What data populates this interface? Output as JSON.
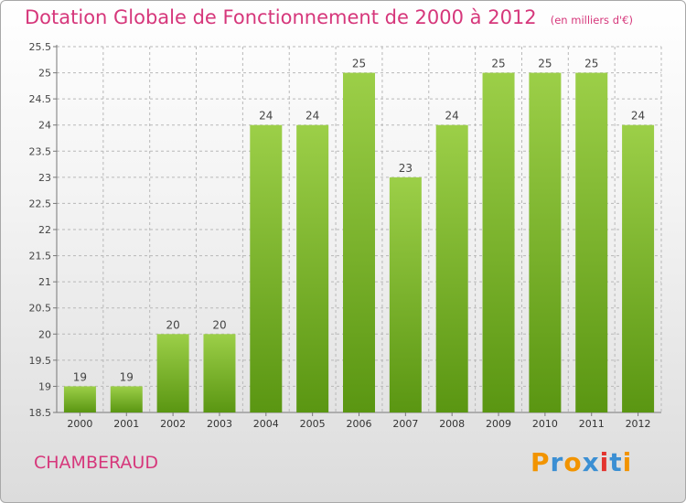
{
  "header": {
    "title": "Dotation Globale de Fonctionnement de 2000 à 2012",
    "unit": "(en milliers d'€)"
  },
  "footer": {
    "commune": "CHAMBERAUD",
    "logo": "Proxiti"
  },
  "colors": {
    "title": "#d6377b",
    "bar_top": "#9ccf48",
    "bar_bottom": "#5a9612",
    "grid": "#b8b8b8",
    "logo_letters": [
      "#f29400",
      "#3b8fd3",
      "#f29400",
      "#3b8fd3",
      "#e3342f",
      "#3b8fd3",
      "#f29400"
    ]
  },
  "chart_data": {
    "type": "bar",
    "categories": [
      "2000",
      "2001",
      "2002",
      "2003",
      "2004",
      "2005",
      "2006",
      "2007",
      "2008",
      "2009",
      "2010",
      "2011",
      "2012"
    ],
    "values": [
      19,
      19,
      20,
      20,
      24,
      24,
      25,
      23,
      24,
      25,
      25,
      25,
      24
    ],
    "title": "Dotation Globale de Fonctionnement de 2000 à 2012",
    "subtitle": "(en milliers d'€)",
    "xlabel": "",
    "ylabel": "",
    "ylim": [
      18.5,
      25.5
    ],
    "yticks": [
      18.5,
      19,
      19.5,
      20,
      20.5,
      21,
      21.5,
      22,
      22.5,
      23,
      23.5,
      24,
      24.5,
      25,
      25.5
    ],
    "ytick_labels": [
      "18.5",
      "19",
      "19.5",
      "20",
      "20.5",
      "21",
      "21.5",
      "22",
      "22.5",
      "23",
      "23.5",
      "24",
      "24.5",
      "25",
      "25.5"
    ],
    "data_labels": [
      "19",
      "19",
      "20",
      "20",
      "24",
      "24",
      "25",
      "23",
      "24",
      "25",
      "25",
      "25",
      "24"
    ],
    "grid": true,
    "grid_style": "dashed",
    "legend": "none"
  }
}
